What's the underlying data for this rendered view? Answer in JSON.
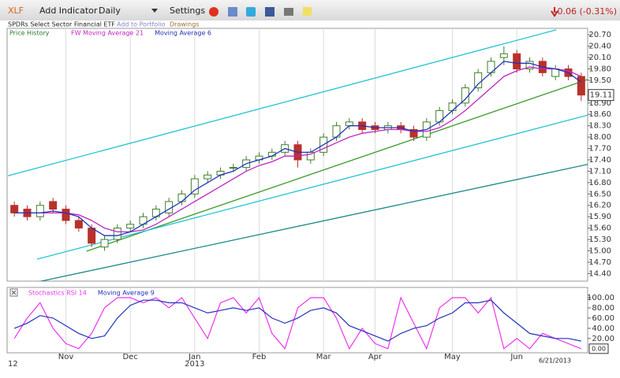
{
  "toolbar": {
    "symbol": "XLF",
    "add_indicator": "Add Indicator",
    "interval": "Daily",
    "settings": "Settings",
    "change": "-0.06 (-0.31%)",
    "description": "SPDRs Select Sector Financial ETF",
    "add_to_portfolio": "Add to Portfolio",
    "drawings": "Drawings"
  },
  "chart_data": [
    {
      "type": "candlestick",
      "name": "Price History",
      "up_color": "#3f7f2a",
      "down_color": "#b8312a",
      "open": [
        16.2,
        16.1,
        15.9,
        16.3,
        16.1,
        15.8,
        15.6,
        15.1,
        15.3,
        15.6,
        15.7,
        15.9,
        16.0,
        16.3,
        16.5,
        16.9,
        17.0,
        17.2,
        17.2,
        17.4,
        17.5,
        17.6,
        17.8,
        17.4,
        17.6,
        18.0,
        18.3,
        18.4,
        18.3,
        18.2,
        18.3,
        18.2,
        18.0,
        18.4,
        18.7,
        18.9,
        19.3,
        19.7,
        20.1,
        20.2,
        19.8,
        20.0,
        19.6,
        19.8,
        19.6
      ],
      "high": [
        16.3,
        16.2,
        16.3,
        16.4,
        16.2,
        15.9,
        15.7,
        15.4,
        15.7,
        15.8,
        16.0,
        16.2,
        16.4,
        16.6,
        17.0,
        17.1,
        17.2,
        17.3,
        17.5,
        17.6,
        17.7,
        17.9,
        17.9,
        17.7,
        18.1,
        18.4,
        18.5,
        18.5,
        18.4,
        18.4,
        18.4,
        18.3,
        18.5,
        18.8,
        19.0,
        19.4,
        19.8,
        20.1,
        20.4,
        20.3,
        20.1,
        20.1,
        19.9,
        19.9,
        19.7
      ],
      "low": [
        15.9,
        15.8,
        15.8,
        16.0,
        15.7,
        15.5,
        15.1,
        15.0,
        15.2,
        15.5,
        15.6,
        15.8,
        15.9,
        16.2,
        16.4,
        16.8,
        16.9,
        17.1,
        17.1,
        17.3,
        17.4,
        17.5,
        17.2,
        17.3,
        17.5,
        17.9,
        18.2,
        18.1,
        18.1,
        18.1,
        18.1,
        17.9,
        17.9,
        18.3,
        18.6,
        18.8,
        19.2,
        19.6,
        19.9,
        19.7,
        19.7,
        19.6,
        19.5,
        19.5,
        18.95
      ],
      "close": [
        16.0,
        15.9,
        16.2,
        16.1,
        15.8,
        15.6,
        15.2,
        15.3,
        15.6,
        15.7,
        15.9,
        16.1,
        16.3,
        16.5,
        16.9,
        17.0,
        17.1,
        17.2,
        17.4,
        17.5,
        17.6,
        17.8,
        17.4,
        17.6,
        18.0,
        18.3,
        18.4,
        18.2,
        18.2,
        18.3,
        18.2,
        18.0,
        18.4,
        18.7,
        18.9,
        19.3,
        19.7,
        20.0,
        20.2,
        19.8,
        20.0,
        19.7,
        19.8,
        19.6,
        19.11
      ],
      "series": [
        {
          "name": "FW Moving Average 21",
          "color": "#c026c0",
          "values": [
            16.0,
            16.0,
            16.0,
            16.0,
            16.0,
            15.95,
            15.8,
            15.6,
            15.5,
            15.5,
            15.55,
            15.7,
            15.9,
            16.1,
            16.3,
            16.5,
            16.7,
            16.9,
            17.1,
            17.25,
            17.35,
            17.5,
            17.5,
            17.55,
            17.7,
            17.85,
            18.0,
            18.1,
            18.15,
            18.2,
            18.2,
            18.15,
            18.15,
            18.25,
            18.45,
            18.7,
            19.0,
            19.3,
            19.6,
            19.75,
            19.85,
            19.8,
            19.8,
            19.75,
            19.6
          ]
        },
        {
          "name": "Moving Average 6",
          "color": "#2233bb",
          "values": [
            16.0,
            16.0,
            16.0,
            16.05,
            16.0,
            15.9,
            15.6,
            15.4,
            15.4,
            15.5,
            15.7,
            15.9,
            16.1,
            16.3,
            16.6,
            16.8,
            17.0,
            17.1,
            17.3,
            17.4,
            17.5,
            17.7,
            17.6,
            17.6,
            17.8,
            18.0,
            18.3,
            18.3,
            18.25,
            18.25,
            18.25,
            18.15,
            18.2,
            18.4,
            18.7,
            19.0,
            19.4,
            19.7,
            20.0,
            19.95,
            19.95,
            19.85,
            19.8,
            19.7,
            19.45
          ]
        }
      ],
      "trendlines": [
        {
          "color": "#22c4d4",
          "x": [
            -0.5,
            42.06
          ],
          "values": [
            16.98,
            20.83
          ]
        },
        {
          "color": "#3a9a2a",
          "x": [
            5.6,
            44.5
          ],
          "values": [
            14.99,
            19.52
          ]
        },
        {
          "color": "#22c4d4",
          "x": [
            1.77,
            44.5
          ],
          "values": [
            14.78,
            18.58
          ]
        },
        {
          "color": "#1a8a8a",
          "x": [
            0.72,
            44.5
          ],
          "values": [
            14.1,
            17.28
          ]
        }
      ],
      "last": 19.11,
      "ylim": [
        14.2,
        20.87
      ],
      "yticks": [
        {
          "value": 14.4,
          "label": "14.40"
        },
        {
          "value": 14.7,
          "label": "14.70"
        },
        {
          "value": 15.0,
          "label": "15.00"
        },
        {
          "value": 15.3,
          "label": "15.30"
        },
        {
          "value": 15.6,
          "label": "15.60"
        },
        {
          "value": 15.9,
          "label": "15.90"
        },
        {
          "value": 16.2,
          "label": "16.20"
        },
        {
          "value": 16.5,
          "label": "16.50"
        },
        {
          "value": 16.8,
          "label": "16.80"
        },
        {
          "value": 17.1,
          "label": "17.10"
        },
        {
          "value": 17.4,
          "label": "17.40"
        },
        {
          "value": 17.7,
          "label": "17.70"
        },
        {
          "value": 18.0,
          "label": "18.00"
        },
        {
          "value": 18.3,
          "label": "18.30"
        },
        {
          "value": 18.6,
          "label": "18.60"
        },
        {
          "value": 18.9,
          "label": "18.90"
        },
        {
          "value": 19.5,
          "label": "19.50"
        },
        {
          "value": 19.8,
          "label": "19.80"
        },
        {
          "value": 20.1,
          "label": "20.10"
        },
        {
          "value": 20.4,
          "label": "20.40"
        },
        {
          "value": 20.7,
          "label": "20.70"
        }
      ]
    },
    {
      "type": "line",
      "categories": [
        null,
        null,
        null,
        null,
        "Nov",
        null,
        null,
        null,
        null,
        "Dec",
        null,
        null,
        null,
        null,
        "Jan",
        null,
        null,
        null,
        null,
        "Feb",
        null,
        null,
        null,
        null,
        "Mar",
        null,
        null,
        null,
        "Apr",
        null,
        null,
        null,
        null,
        null,
        "May",
        null,
        null,
        null,
        null,
        "Jun",
        null,
        null,
        null,
        null,
        null
      ],
      "start_label": "12",
      "year_label": "2013",
      "end_label": "6/21/2013",
      "series": [
        {
          "name": "Stochastics RSI 14",
          "color": "#ee33ee",
          "values": [
            20,
            60,
            90,
            40,
            10,
            0,
            30,
            80,
            100,
            100,
            90,
            100,
            80,
            100,
            60,
            20,
            90,
            100,
            70,
            100,
            30,
            0,
            80,
            100,
            100,
            60,
            0,
            40,
            10,
            0,
            100,
            50,
            0,
            80,
            100,
            100,
            70,
            100,
            0,
            20,
            0,
            30,
            20,
            10,
            0
          ]
        },
        {
          "name": "Moving Average 9",
          "color": "#2233bb",
          "values": [
            40,
            50,
            65,
            60,
            45,
            30,
            20,
            25,
            60,
            85,
            95,
            95,
            90,
            90,
            80,
            70,
            75,
            80,
            75,
            80,
            60,
            50,
            60,
            75,
            80,
            70,
            45,
            35,
            25,
            15,
            30,
            40,
            45,
            60,
            70,
            90,
            90,
            95,
            70,
            50,
            30,
            25,
            20,
            20,
            15
          ]
        }
      ],
      "last": {
        "value": 0,
        "label": "0.00"
      },
      "ylim": [
        -8,
        120
      ],
      "yticks": [
        {
          "value": 20,
          "label": "20.00"
        },
        {
          "value": 40,
          "label": "40.00"
        },
        {
          "value": 60,
          "label": "60.00"
        },
        {
          "value": 80,
          "label": "80.00"
        },
        {
          "value": 100,
          "label": "100.00"
        }
      ]
    }
  ]
}
